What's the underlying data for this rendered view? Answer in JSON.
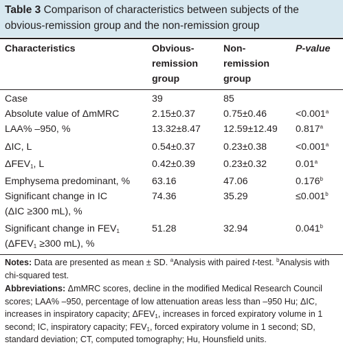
{
  "title": {
    "label": "Table 3",
    "text": "Comparison of characteristics between subjects of the obvious-remission group and the non-remission group"
  },
  "columns": {
    "c1": "Characteristics",
    "c2": [
      "Obvious-",
      "remission",
      "group"
    ],
    "c3": [
      "Non-",
      "remission",
      "group"
    ],
    "c4": "P-value"
  },
  "rows": [
    {
      "label": [
        "Case"
      ],
      "v1": "39",
      "v2": "85",
      "p": "",
      "psup": ""
    },
    {
      "label": [
        "Absolute value of ΔmMRC"
      ],
      "v1": "2.15±0.37",
      "v2": "0.75±0.46",
      "p": "<0.001",
      "psup": "a"
    },
    {
      "label": [
        "LAA% –950, %"
      ],
      "v1": "13.32±8.47",
      "v2": "12.59±12.49",
      "p": "0.817",
      "psup": "a"
    },
    {
      "label": [
        "ΔIC, L"
      ],
      "v1": "0.54±0.37",
      "v2": "0.23±0.38",
      "p": "<0.001",
      "psup": "a"
    },
    {
      "label": [
        "ΔFEV",
        ", L"
      ],
      "v1": "0.42±0.39",
      "v2": "0.23±0.32",
      "p": "0.01",
      "psup": "a"
    },
    {
      "label": [
        "Emphysema predominant, %"
      ],
      "v1": "63.16",
      "v2": "47.06",
      "p": "0.176",
      "psup": "b"
    },
    {
      "label": [
        "Significant change in IC",
        "(ΔIC ≥300 mL), %"
      ],
      "v1": "74.36",
      "v2": "35.29",
      "p": "≤0.001",
      "psup": "b"
    },
    {
      "label": [
        "Significant change in FEV",
        "(ΔFEV",
        " ≥300 mL), %"
      ],
      "v1": "51.28",
      "v2": "32.94",
      "p": "0.041",
      "psup": "b"
    }
  ],
  "subscript_one": "1",
  "notes": {
    "notes_label": "Notes:",
    "notes_text1": " Data are presented as mean ± SD. ",
    "sup_a": "a",
    "notes_text2": "Analysis with paired ",
    "t_italic": "t",
    "notes_text3": "-test. ",
    "sup_b": "b",
    "notes_text4": "Analysis with chi-squared test.",
    "abbr_label": "Abbreviations:",
    "abbr_text1": " ΔmMRC scores, decline in the modified Medical Research Council scores; LAA% –950, percentage of low attenuation areas less than –950 Hu; ΔIC, increases in inspiratory capacity; ΔFEV",
    "abbr_text2": ", increases in forced expiratory volume in 1 second; IC, inspiratory capacity; FEV",
    "abbr_text3": ", forced expiratory volume in 1 second; SD, standard deviation; CT, computed tomography; Hu, Hounsfield units."
  },
  "colors": {
    "title_band": "#d8e8f0",
    "text": "#231f20"
  }
}
